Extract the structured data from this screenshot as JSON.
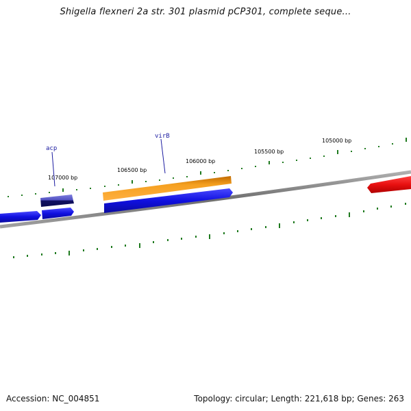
{
  "title": "Shigella flexneri 2a str. 301 plasmid pCP301, complete seque...",
  "accession": "Accession: NC_004851",
  "summary": "Topology: circular; Length: 221,618 bp; Genes: 263",
  "colors": {
    "backbone": "#7a7a7a",
    "ticks": "#1f7a1f",
    "forward_gene": "#1010e0",
    "reverse_gene": "#f08a10",
    "highlight_gene": "#e81010",
    "acp_gene": "#6060c8",
    "gene_label": "#1a1aa0"
  },
  "bp_labels": [
    "107000 bp",
    "106500 bp",
    "106000 bp",
    "105500 bp",
    "105000 bp"
  ],
  "gene_labels": [
    "acp",
    "virB"
  ]
}
